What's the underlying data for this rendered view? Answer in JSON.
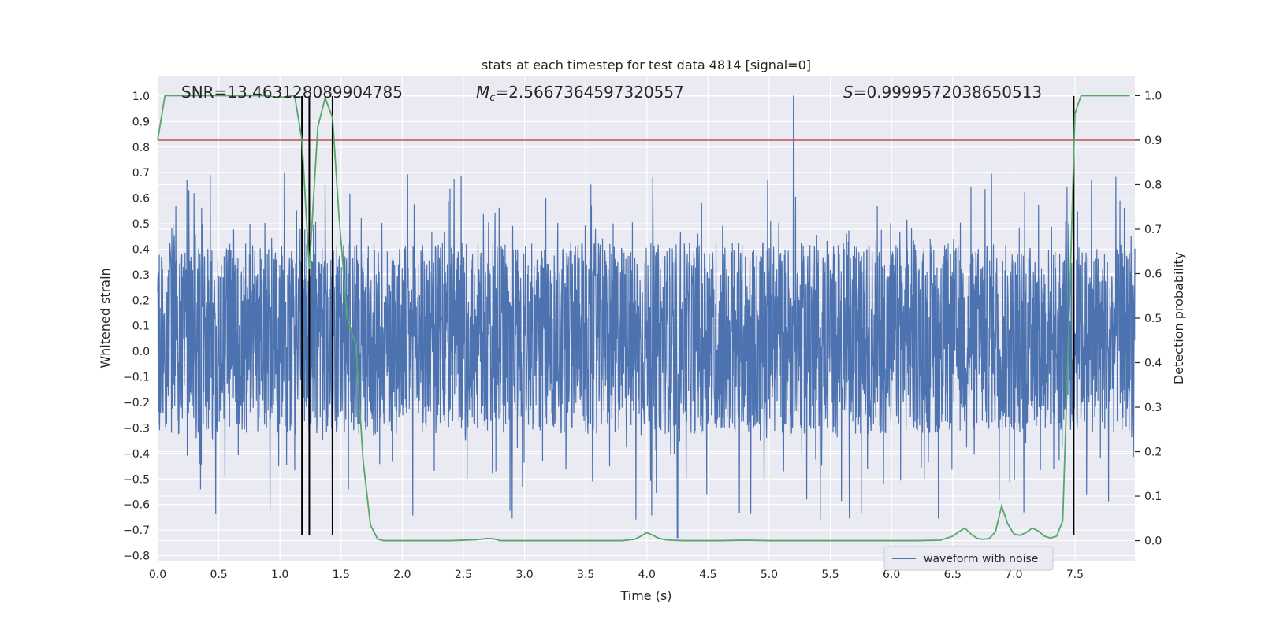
{
  "chart_data": {
    "type": "line",
    "title": "stats at each timestep for test data 4814 [signal=0]",
    "xlabel": "Time (s)",
    "ylabel": "Whitened strain",
    "ylabel_right": "Detection probability",
    "xlim": [
      0.0,
      7.99
    ],
    "ylim": [
      -0.82,
      1.08
    ],
    "ylim_right": [
      -0.045,
      1.045
    ],
    "x_ticks": [
      "0.0",
      "0.5",
      "1.0",
      "1.5",
      "2.0",
      "2.5",
      "3.0",
      "3.5",
      "4.0",
      "4.5",
      "5.0",
      "5.5",
      "6.0",
      "6.5",
      "7.0",
      "7.5"
    ],
    "y_ticks": [
      "1.0",
      "0.9",
      "0.8",
      "0.7",
      "0.6",
      "0.5",
      "0.4",
      "0.3",
      "0.2",
      "0.1",
      "0.0",
      "−0.1",
      "−0.2",
      "−0.3",
      "−0.4",
      "−0.5",
      "−0.6",
      "−0.7",
      "−0.8"
    ],
    "y_ticks_right": [
      "1.0",
      "0.9",
      "0.8",
      "0.7",
      "0.6",
      "0.5",
      "0.4",
      "0.3",
      "0.2",
      "0.1",
      "0.0"
    ],
    "annotations": {
      "snr": "SNR=13.463128089904785",
      "mc_symbol": "M",
      "mc_sub": "c",
      "mc_value": "=2.5667364597320557",
      "s_symbol": "S",
      "s_value": "=0.9999572038650513"
    },
    "legend": {
      "label": "waveform with noise",
      "position": "lower-right"
    },
    "threshold_right": 0.9,
    "vertical_lines_x": [
      1.18,
      1.24,
      1.43,
      7.49
    ],
    "series": [
      {
        "name": "waveform with noise",
        "axis": "left",
        "color": "#4c72b0",
        "band": [
          -0.2,
          0.3
        ],
        "peak_positive": {
          "x": 5.2,
          "y": 1.0
        },
        "extreme_negative": {
          "x": 4.25,
          "y": -0.73
        }
      },
      {
        "name": "detection probability",
        "axis": "right",
        "color": "#55a868",
        "x": [
          0.0,
          0.06,
          0.12,
          0.2,
          0.3,
          0.4,
          0.5,
          0.6,
          0.7,
          0.8,
          0.9,
          0.98,
          1.05,
          1.12,
          1.18,
          1.24,
          1.31,
          1.37,
          1.43,
          1.48,
          1.55,
          1.62,
          1.68,
          1.74,
          1.8,
          1.85,
          1.9,
          2.0,
          2.2,
          2.4,
          2.6,
          2.7,
          2.75,
          2.8,
          2.85,
          2.9,
          3.0,
          3.2,
          3.4,
          3.6,
          3.8,
          3.9,
          3.95,
          4.0,
          4.05,
          4.1,
          4.15,
          4.2,
          4.3,
          4.4,
          4.5,
          4.6,
          4.8,
          5.0,
          5.2,
          5.4,
          5.6,
          5.8,
          6.0,
          6.2,
          6.4,
          6.5,
          6.55,
          6.6,
          6.65,
          6.7,
          6.75,
          6.8,
          6.85,
          6.9,
          6.95,
          7.0,
          7.05,
          7.1,
          7.15,
          7.2,
          7.25,
          7.3,
          7.35,
          7.4,
          7.45,
          7.5,
          7.55,
          7.6,
          7.7,
          7.8,
          7.95
        ],
        "values": [
          0.9,
          1.0,
          1.0,
          1.0,
          1.0,
          1.0,
          1.0,
          1.0,
          1.0,
          1.0,
          1.0,
          0.995,
          0.998,
          1.0,
          0.9,
          0.61,
          0.93,
          0.995,
          0.95,
          0.74,
          0.5,
          0.44,
          0.18,
          0.035,
          0.003,
          0.0,
          0.0,
          0.0,
          0.0,
          0.0,
          0.002,
          0.005,
          0.004,
          0.0,
          0.0,
          0.0,
          0.0,
          0.0,
          0.0,
          0.0,
          0.0,
          0.003,
          0.01,
          0.018,
          0.012,
          0.005,
          0.002,
          0.001,
          0.0,
          0.0,
          0.0,
          0.0,
          0.001,
          0.0,
          0.0,
          0.0,
          0.0,
          0.0,
          0.0,
          0.0,
          0.001,
          0.01,
          0.02,
          0.028,
          0.015,
          0.005,
          0.003,
          0.005,
          0.02,
          0.078,
          0.038,
          0.015,
          0.012,
          0.018,
          0.028,
          0.022,
          0.01,
          0.006,
          0.01,
          0.045,
          0.48,
          0.96,
          1.0,
          1.0,
          1.0,
          1.0,
          1.0
        ]
      }
    ]
  }
}
